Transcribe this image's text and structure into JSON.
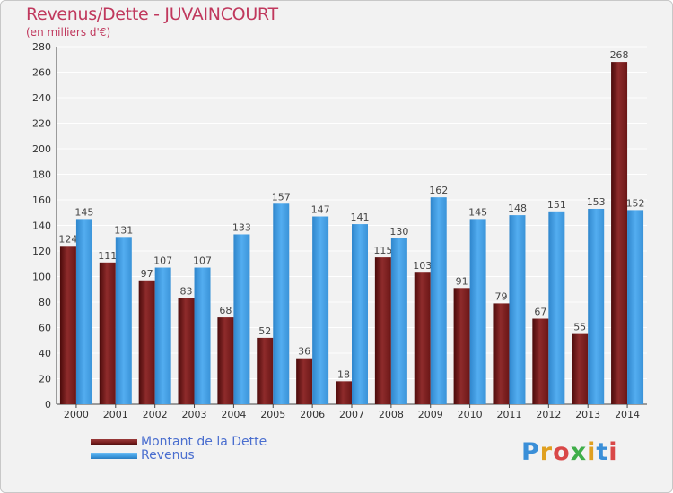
{
  "title": "Revenus/Dette - JUVAINCOURT",
  "subtitle": "(en milliers d'€)",
  "logo": "Proxiti",
  "colors": {
    "dette": "#7a1f1f",
    "revenus": "#3f9ce0",
    "title": "#c0385d",
    "legend_text": "#4a6ecf",
    "grid": "#ffffff",
    "plot_bg": "#f2f2f2"
  },
  "chart_data": {
    "type": "bar",
    "title": "Revenus/Dette - JUVAINCOURT",
    "ylabel": "(en milliers d'€)",
    "xlabel": "",
    "ylim": [
      0,
      280
    ],
    "yticks": [
      0,
      20,
      40,
      60,
      80,
      100,
      120,
      140,
      160,
      180,
      200,
      220,
      240,
      260,
      280
    ],
    "grid": true,
    "legend_position": "bottom-left",
    "categories": [
      "2000",
      "2001",
      "2002",
      "2003",
      "2004",
      "2005",
      "2006",
      "2007",
      "2008",
      "2009",
      "2010",
      "2011",
      "2012",
      "2013",
      "2014"
    ],
    "series": [
      {
        "name": "Montant de la Dette",
        "values": [
          124,
          111,
          97,
          83,
          68,
          52,
          36,
          18,
          115,
          103,
          91,
          79,
          67,
          55,
          268
        ]
      },
      {
        "name": "Revenus",
        "values": [
          145,
          131,
          107,
          107,
          133,
          157,
          147,
          141,
          130,
          162,
          145,
          148,
          151,
          153,
          152
        ]
      }
    ]
  }
}
